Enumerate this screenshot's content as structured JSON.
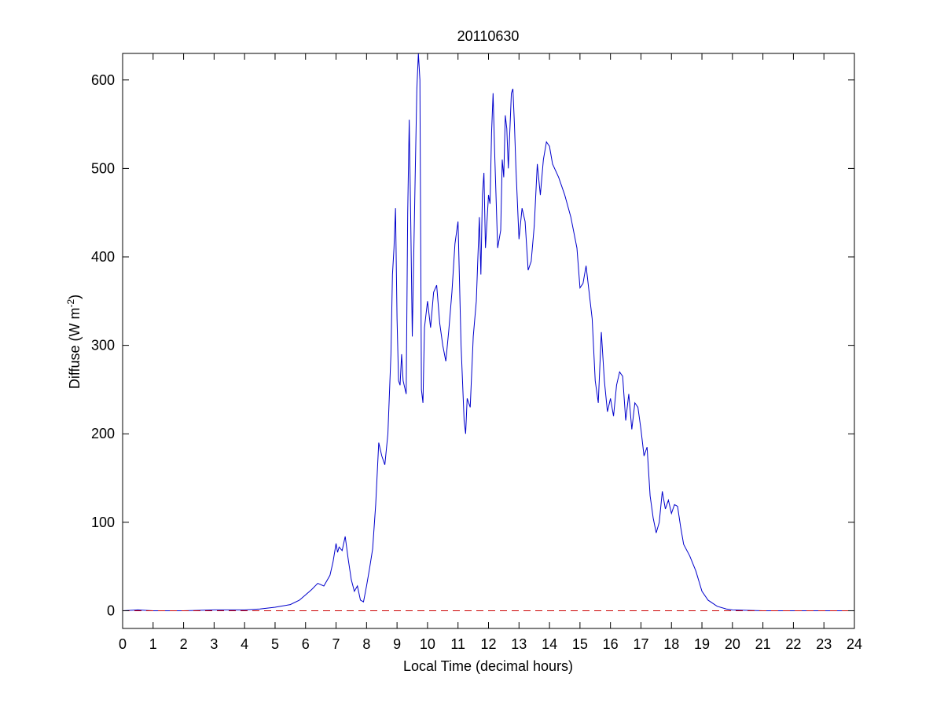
{
  "chart_data": {
    "type": "line",
    "title": "20110630",
    "xlabel": "Local Time (decimal hours)",
    "ylabel": {
      "base": "Diffuse (W m",
      "superscript": "-2",
      "close": ")"
    },
    "xlim": [
      0,
      24
    ],
    "ylim": [
      -20,
      630
    ],
    "xticks": [
      0,
      1,
      2,
      3,
      4,
      5,
      6,
      7,
      8,
      9,
      10,
      11,
      12,
      13,
      14,
      15,
      16,
      17,
      18,
      19,
      20,
      21,
      22,
      23,
      24
    ],
    "yticks": [
      0,
      100,
      200,
      300,
      400,
      500,
      600
    ],
    "grid": false,
    "series": [
      {
        "color": "#0000cc",
        "style": "solid",
        "points": [
          [
            0,
            0
          ],
          [
            0.5,
            1
          ],
          [
            1,
            0
          ],
          [
            2,
            0
          ],
          [
            3,
            1
          ],
          [
            4,
            1
          ],
          [
            4.5,
            2
          ],
          [
            5,
            4
          ],
          [
            5.5,
            7
          ],
          [
            5.8,
            12
          ],
          [
            6,
            18
          ],
          [
            6.2,
            24
          ],
          [
            6.4,
            31
          ],
          [
            6.6,
            28
          ],
          [
            6.8,
            40
          ],
          [
            6.9,
            55
          ],
          [
            7.0,
            76
          ],
          [
            7.05,
            66
          ],
          [
            7.1,
            72
          ],
          [
            7.2,
            68
          ],
          [
            7.3,
            84
          ],
          [
            7.4,
            58
          ],
          [
            7.5,
            35
          ],
          [
            7.6,
            22
          ],
          [
            7.7,
            28
          ],
          [
            7.8,
            12
          ],
          [
            7.9,
            10
          ],
          [
            8.0,
            28
          ],
          [
            8.1,
            48
          ],
          [
            8.2,
            70
          ],
          [
            8.3,
            120
          ],
          [
            8.4,
            190
          ],
          [
            8.5,
            175
          ],
          [
            8.6,
            165
          ],
          [
            8.7,
            200
          ],
          [
            8.8,
            290
          ],
          [
            8.85,
            380
          ],
          [
            8.9,
            410
          ],
          [
            8.95,
            455
          ],
          [
            9.0,
            330
          ],
          [
            9.05,
            260
          ],
          [
            9.1,
            255
          ],
          [
            9.15,
            290
          ],
          [
            9.2,
            260
          ],
          [
            9.3,
            245
          ],
          [
            9.35,
            450
          ],
          [
            9.4,
            555
          ],
          [
            9.45,
            440
          ],
          [
            9.5,
            310
          ],
          [
            9.6,
            500
          ],
          [
            9.65,
            590
          ],
          [
            9.7,
            630
          ],
          [
            9.75,
            600
          ],
          [
            9.8,
            250
          ],
          [
            9.85,
            235
          ],
          [
            9.9,
            320
          ],
          [
            10.0,
            350
          ],
          [
            10.1,
            320
          ],
          [
            10.2,
            360
          ],
          [
            10.3,
            368
          ],
          [
            10.4,
            325
          ],
          [
            10.5,
            300
          ],
          [
            10.6,
            282
          ],
          [
            10.7,
            318
          ],
          [
            10.8,
            360
          ],
          [
            10.9,
            415
          ],
          [
            11.0,
            440
          ],
          [
            11.1,
            300
          ],
          [
            11.2,
            215
          ],
          [
            11.25,
            200
          ],
          [
            11.3,
            240
          ],
          [
            11.4,
            230
          ],
          [
            11.5,
            310
          ],
          [
            11.6,
            350
          ],
          [
            11.7,
            445
          ],
          [
            11.75,
            380
          ],
          [
            11.8,
            470
          ],
          [
            11.85,
            495
          ],
          [
            11.9,
            410
          ],
          [
            12.0,
            470
          ],
          [
            12.05,
            460
          ],
          [
            12.1,
            540
          ],
          [
            12.15,
            585
          ],
          [
            12.2,
            520
          ],
          [
            12.3,
            410
          ],
          [
            12.4,
            430
          ],
          [
            12.45,
            510
          ],
          [
            12.5,
            490
          ],
          [
            12.55,
            560
          ],
          [
            12.6,
            545
          ],
          [
            12.65,
            500
          ],
          [
            12.75,
            585
          ],
          [
            12.8,
            590
          ],
          [
            12.85,
            550
          ],
          [
            12.9,
            500
          ],
          [
            13.0,
            420
          ],
          [
            13.1,
            455
          ],
          [
            13.2,
            440
          ],
          [
            13.3,
            385
          ],
          [
            13.4,
            395
          ],
          [
            13.5,
            435
          ],
          [
            13.6,
            505
          ],
          [
            13.7,
            470
          ],
          [
            13.8,
            510
          ],
          [
            13.9,
            530
          ],
          [
            14.0,
            525
          ],
          [
            14.1,
            505
          ],
          [
            14.3,
            490
          ],
          [
            14.5,
            470
          ],
          [
            14.7,
            445
          ],
          [
            14.9,
            410
          ],
          [
            15.0,
            365
          ],
          [
            15.1,
            370
          ],
          [
            15.2,
            390
          ],
          [
            15.3,
            360
          ],
          [
            15.4,
            330
          ],
          [
            15.5,
            260
          ],
          [
            15.6,
            235
          ],
          [
            15.7,
            315
          ],
          [
            15.8,
            260
          ],
          [
            15.9,
            225
          ],
          [
            16.0,
            240
          ],
          [
            16.1,
            220
          ],
          [
            16.2,
            255
          ],
          [
            16.3,
            270
          ],
          [
            16.4,
            265
          ],
          [
            16.5,
            215
          ],
          [
            16.6,
            245
          ],
          [
            16.7,
            205
          ],
          [
            16.8,
            235
          ],
          [
            16.9,
            230
          ],
          [
            17.0,
            205
          ],
          [
            17.1,
            175
          ],
          [
            17.2,
            185
          ],
          [
            17.3,
            130
          ],
          [
            17.4,
            105
          ],
          [
            17.5,
            88
          ],
          [
            17.6,
            100
          ],
          [
            17.7,
            135
          ],
          [
            17.8,
            115
          ],
          [
            17.9,
            125
          ],
          [
            18.0,
            110
          ],
          [
            18.1,
            120
          ],
          [
            18.2,
            118
          ],
          [
            18.3,
            95
          ],
          [
            18.4,
            75
          ],
          [
            18.6,
            62
          ],
          [
            18.8,
            45
          ],
          [
            19.0,
            22
          ],
          [
            19.2,
            12
          ],
          [
            19.5,
            5
          ],
          [
            19.8,
            2
          ],
          [
            20,
            1
          ],
          [
            21,
            0
          ],
          [
            22,
            0
          ],
          [
            23,
            0
          ],
          [
            24,
            0
          ]
        ]
      },
      {
        "color": "#cc0000",
        "style": "dashed",
        "points": [
          [
            0,
            0
          ],
          [
            24,
            0
          ]
        ]
      }
    ]
  }
}
